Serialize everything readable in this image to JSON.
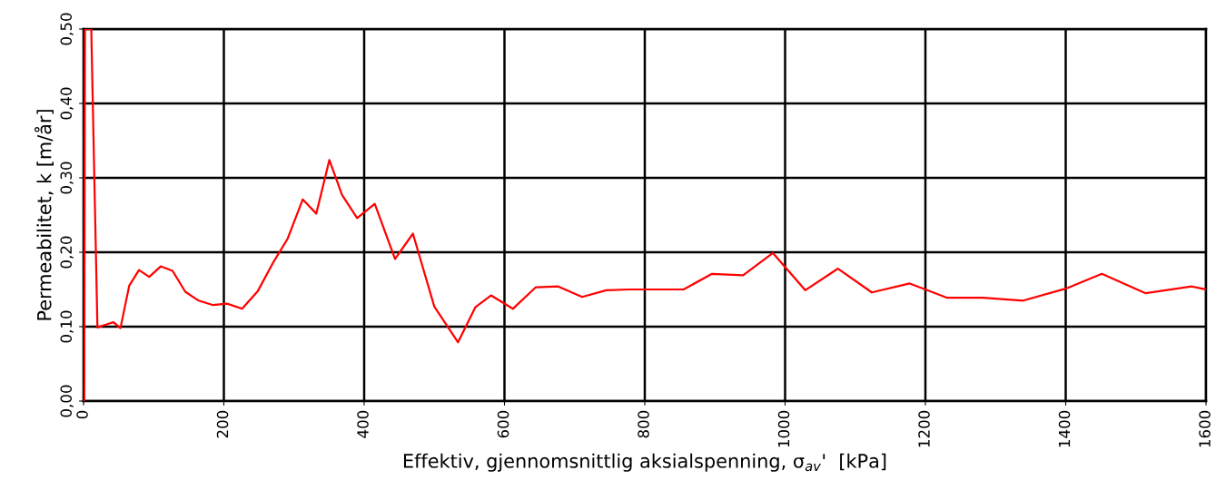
{
  "chart_data": {
    "type": "line",
    "xlabel": "Effektiv, gjennomsnittlig aksialspenning, σ$_{av}$'  [kPa]",
    "ylabel": "Permeabilitet, k [m/år]",
    "xlim": [
      0,
      1600
    ],
    "ylim": [
      0,
      0.5
    ],
    "xticks": [
      0,
      200,
      400,
      600,
      800,
      1000,
      1200,
      1400,
      1600
    ],
    "yticks": [
      {
        "value": 0,
        "label": "0,00"
      },
      {
        "value": 0.1,
        "label": "0,10"
      },
      {
        "value": 0.2,
        "label": "0,20"
      },
      {
        "value": 0.3,
        "label": "0,30"
      },
      {
        "value": 0.4,
        "label": "0,40"
      },
      {
        "value": 0.5,
        "label": "0,50"
      }
    ],
    "grid": true,
    "legend": false,
    "marker": "none",
    "line_style": "solid",
    "series": [
      {
        "color": "#ff0000",
        "x": [
          0,
          1,
          2,
          11,
          19.8,
          32.8,
          42.7,
          52.6,
          65.1,
          79,
          93.6,
          110,
          126.9,
          145,
          164,
          184.7,
          204.5,
          226,
          248.5,
          271.4,
          290.8,
          312.4,
          331.8,
          350.4,
          368.5,
          390,
          415.1,
          444,
          469.5,
          500,
          533.7,
          558.4,
          580.8,
          611.9,
          644.7,
          676.6,
          710.7,
          745.2,
          778.4,
          855.3,
          895.8,
          940.2,
          982.5,
          1028.7,
          1075.4,
          1123.6,
          1177.6,
          1230.3,
          1282,
          1339.4,
          1399.8,
          1451.5,
          1513.3,
          1579.7,
          1600
        ],
        "values": [
          0.21,
          0,
          0.5,
          0.5,
          0.099,
          0.103,
          0.106,
          0.098,
          0.155,
          0.176,
          0.167,
          0.181,
          0.175,
          0.147,
          0.135,
          0.129,
          0.131,
          0.124,
          0.148,
          0.188,
          0.218,
          0.271,
          0.252,
          0.324,
          0.277,
          0.246,
          0.265,
          0.191,
          0.225,
          0.127,
          0.079,
          0.126,
          0.142,
          0.124,
          0.153,
          0.154,
          0.14,
          0.149,
          0.15,
          0.15,
          0.171,
          0.169,
          0.199,
          0.149,
          0.178,
          0.146,
          0.158,
          0.139,
          0.139,
          0.135,
          0.151,
          0.171,
          0.145,
          0.154,
          0.15
        ]
      }
    ]
  }
}
